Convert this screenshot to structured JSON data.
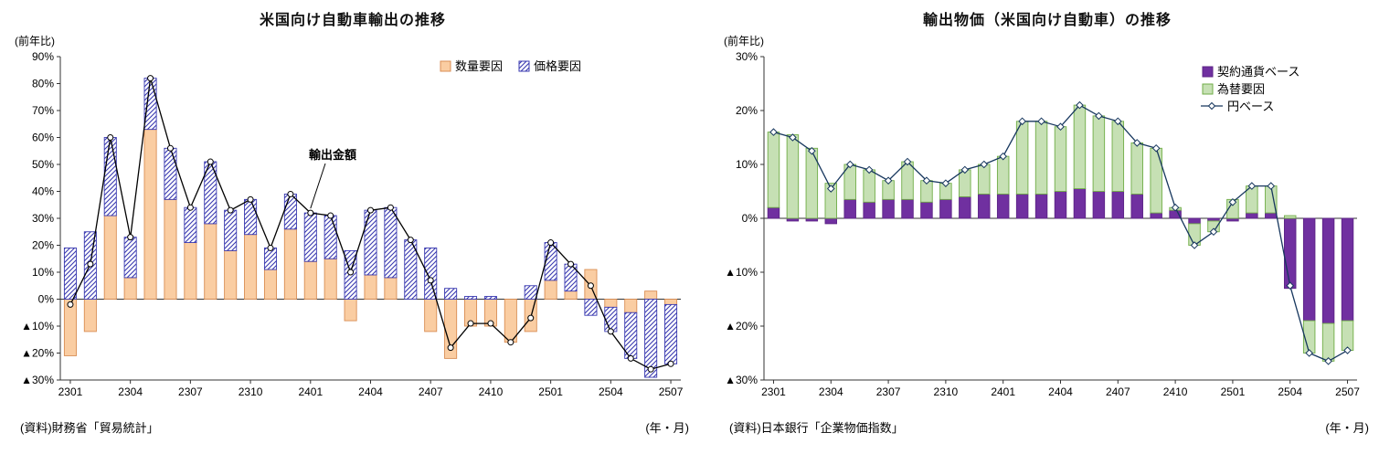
{
  "page": {
    "background": "#ffffff"
  },
  "chart_data": [
    {
      "type": "bar+line",
      "title": "米国向け自動車輸出の推移",
      "y_unit_label": "(前年比)",
      "x_axis_note": "(年・月)",
      "source": "(資料)財務省「貿易統計」",
      "ylim": [
        -30,
        90
      ],
      "ytick_step": 10,
      "xtick_every": 3,
      "grid": false,
      "legend_pos": "top-right-horizontal",
      "categories": [
        "2301",
        "2302",
        "2303",
        "2304",
        "2305",
        "2306",
        "2307",
        "2308",
        "2309",
        "2310",
        "2311",
        "2312",
        "2401",
        "2402",
        "2403",
        "2404",
        "2405",
        "2406",
        "2407",
        "2408",
        "2409",
        "2410",
        "2411",
        "2412",
        "2501",
        "2502",
        "2503",
        "2504",
        "2505",
        "2506",
        "2507"
      ],
      "series": [
        {
          "key": "quantity",
          "name": "数量要因",
          "type": "bar",
          "in_legend": true,
          "fill": "#FACDA2",
          "border": "#D98E54",
          "values": [
            -21,
            -12,
            31,
            8,
            63,
            37,
            21,
            28,
            18,
            24,
            11,
            26,
            14,
            15,
            -8,
            9,
            8,
            0,
            -12,
            -22,
            -10,
            -10,
            -16,
            -12,
            7,
            3,
            11,
            -3,
            -5,
            3,
            -2
          ]
        },
        {
          "key": "price",
          "name": "価格要因",
          "type": "bar",
          "in_legend": true,
          "pattern": "hatch",
          "fill": "#ffffff",
          "border": "#3939B0",
          "hatch_color": "#3939B0",
          "values": [
            19,
            25,
            29,
            15,
            19,
            19,
            13,
            23,
            15,
            13,
            8,
            13,
            18,
            16,
            18,
            24,
            26,
            22,
            19,
            4,
            1,
            1,
            0,
            5,
            14,
            10,
            -6,
            -9,
            -17,
            -29,
            -22
          ]
        },
        {
          "key": "export-value",
          "name": "輸出金額",
          "type": "line",
          "in_legend": false,
          "color": "#000000",
          "marker": "circle",
          "values": [
            -2,
            13,
            60,
            23,
            82,
            56,
            34,
            51,
            33,
            37,
            19,
            39,
            32,
            31,
            10,
            33,
            34,
            22,
            7,
            -18,
            -9,
            -9,
            -16,
            -7,
            21,
            13,
            5,
            -12,
            -22,
            -26,
            -24
          ]
        }
      ],
      "annotation": {
        "text": "輸出金額",
        "target_month": "2401"
      }
    },
    {
      "type": "bar+line",
      "title": "輸出物価（米国向け自動車）の推移",
      "y_unit_label": "(前年比)",
      "x_axis_note": "(年・月)",
      "source": "(資料)日本銀行「企業物価指数」",
      "ylim": [
        -30,
        30
      ],
      "ytick_step": 10,
      "xtick_every": 3,
      "grid": false,
      "legend_pos": "top-right-vertical",
      "categories": [
        "2301",
        "2302",
        "2303",
        "2304",
        "2305",
        "2306",
        "2307",
        "2308",
        "2309",
        "2310",
        "2311",
        "2312",
        "2401",
        "2402",
        "2403",
        "2404",
        "2405",
        "2406",
        "2407",
        "2408",
        "2409",
        "2410",
        "2411",
        "2412",
        "2501",
        "2502",
        "2503",
        "2504",
        "2505",
        "2506",
        "2507"
      ],
      "series": [
        {
          "key": "contract-currency",
          "name": "契約通貨ベース",
          "type": "bar",
          "in_legend": true,
          "fill": "#7030A0",
          "border": "#5C2486",
          "values": [
            2,
            -0.5,
            -0.5,
            -1,
            3.5,
            3,
            3.5,
            3.5,
            3,
            3.5,
            4,
            4.5,
            4.5,
            4.5,
            4.5,
            5,
            5.5,
            5,
            5,
            4.5,
            1,
            1.5,
            -1,
            -0.5,
            -0.5,
            1,
            1,
            -13,
            -19,
            -19.5,
            -19
          ]
        },
        {
          "key": "fx-factor",
          "name": "為替要因",
          "type": "bar",
          "in_legend": true,
          "fill": "#C6E0B4",
          "border": "#70AD47",
          "values": [
            14,
            15.5,
            13,
            6.5,
            6.5,
            6,
            3.5,
            7,
            4,
            3,
            5,
            5.5,
            7,
            13.5,
            13.5,
            12,
            15.5,
            14,
            13,
            9.5,
            12,
            0.5,
            -4,
            -2,
            3.5,
            5,
            5,
            0.5,
            -6,
            -7,
            -5.5
          ]
        },
        {
          "key": "yen-base",
          "name": "円ベース",
          "type": "line",
          "in_legend": true,
          "color": "#17375E",
          "marker": "diamond",
          "values": [
            16,
            15,
            12.5,
            5.5,
            10,
            9,
            7,
            10.5,
            7,
            6.5,
            9,
            10,
            11.5,
            18,
            18,
            17,
            21,
            19,
            18,
            14,
            13,
            2,
            -5,
            -2.5,
            3,
            6,
            6,
            -12.5,
            -25,
            -26.5,
            -24.5
          ]
        }
      ]
    }
  ]
}
